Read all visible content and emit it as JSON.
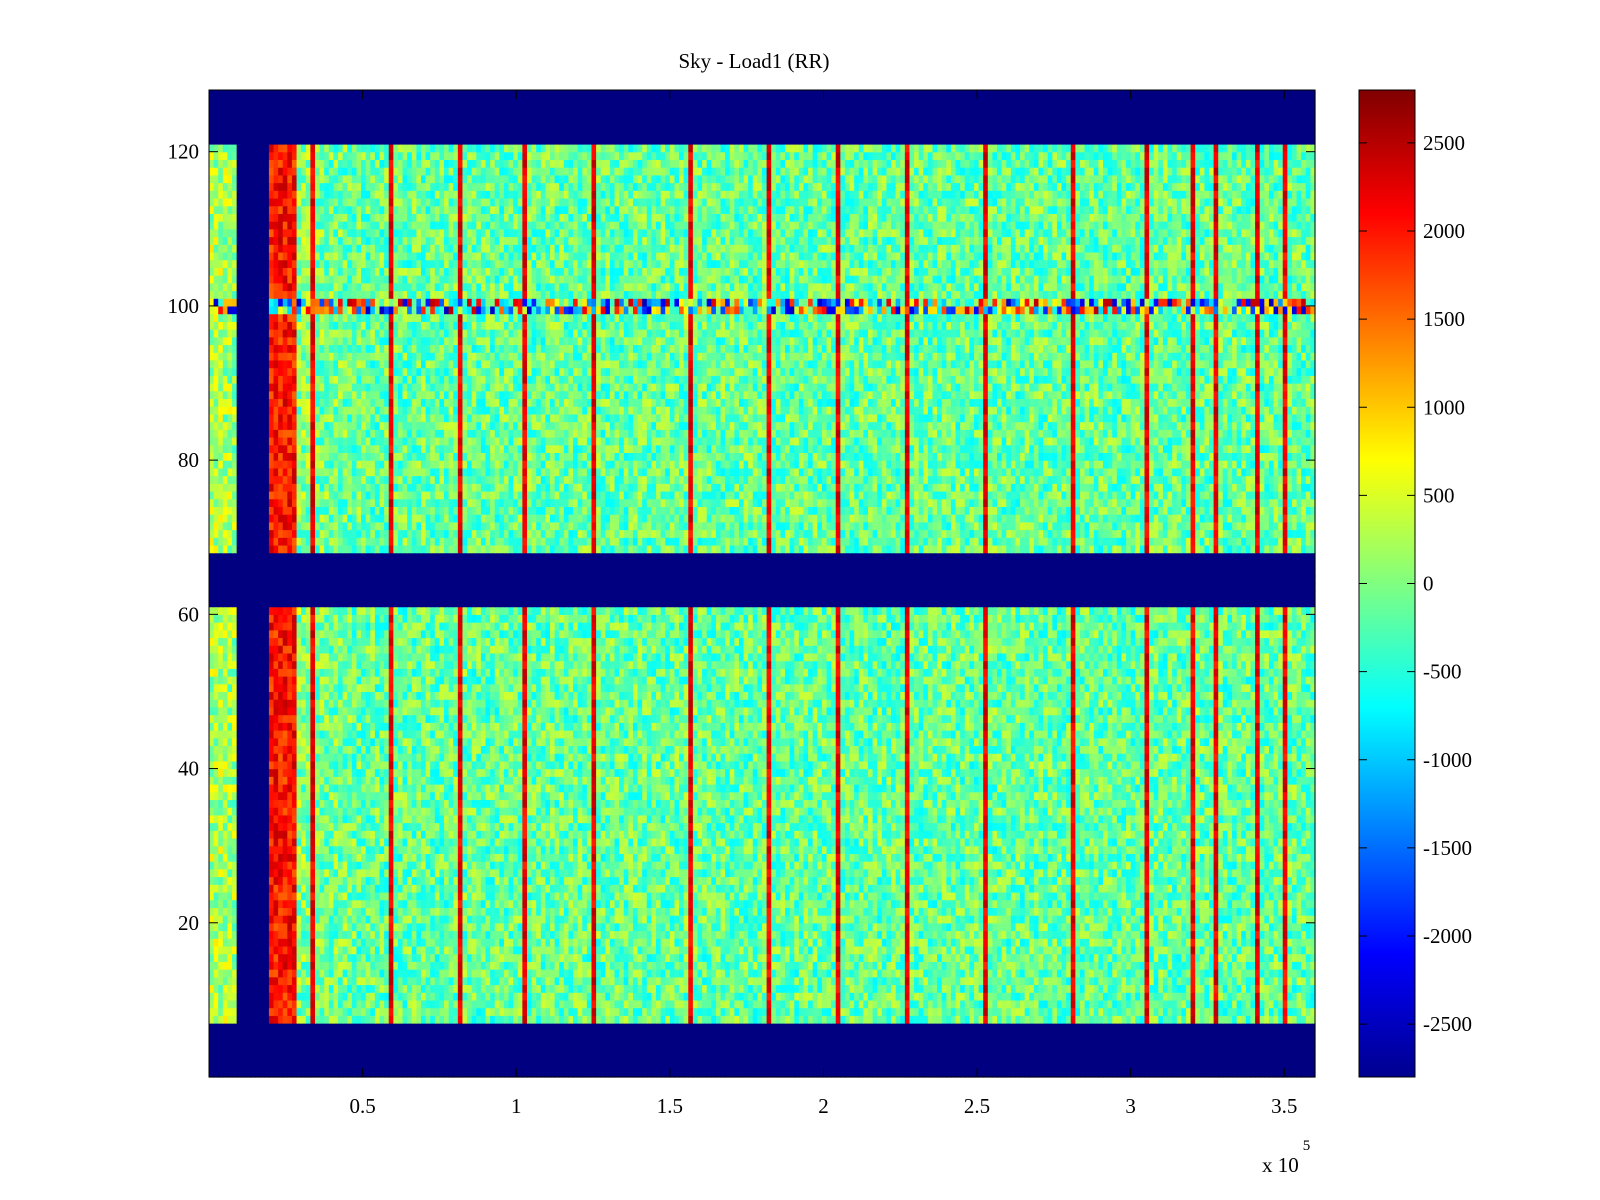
{
  "chart_data": {
    "type": "heatmap",
    "title": "Sky - Load1 (RR)",
    "xlabel": "",
    "ylabel": "",
    "x_multiplier_label": "x 10",
    "x_multiplier_exponent": "5",
    "xlim": [
      0,
      3.6
    ],
    "ylim": [
      0,
      128
    ],
    "x_ticks": [
      {
        "value": 0.5,
        "label": "0.5"
      },
      {
        "value": 1,
        "label": "1"
      },
      {
        "value": 1.5,
        "label": "1.5"
      },
      {
        "value": 2,
        "label": "2"
      },
      {
        "value": 2.5,
        "label": "2.5"
      },
      {
        "value": 3,
        "label": "3"
      },
      {
        "value": 3.5,
        "label": "3.5"
      }
    ],
    "y_ticks": [
      {
        "value": 20,
        "label": "20"
      },
      {
        "value": 40,
        "label": "40"
      },
      {
        "value": 60,
        "label": "60"
      },
      {
        "value": 80,
        "label": "80"
      },
      {
        "value": 100,
        "label": "100"
      },
      {
        "value": 120,
        "label": "120"
      }
    ],
    "colormap": "jet",
    "clim": [
      -2800,
      2800
    ],
    "colorbar_ticks": [
      {
        "value": 2500,
        "label": "2500"
      },
      {
        "value": 2000,
        "label": "2000"
      },
      {
        "value": 1500,
        "label": "1500"
      },
      {
        "value": 1000,
        "label": "1000"
      },
      {
        "value": 500,
        "label": "500"
      },
      {
        "value": 0,
        "label": "0"
      },
      {
        "value": -500,
        "label": "-500"
      },
      {
        "value": -1000,
        "label": "-1000"
      },
      {
        "value": -1500,
        "label": "-1500"
      },
      {
        "value": -2000,
        "label": "-2000"
      },
      {
        "value": -2500,
        "label": "-2500"
      }
    ],
    "masked_value": -2800,
    "masked_row_ranges": [
      [
        0,
        7
      ],
      [
        61,
        68
      ],
      [
        121,
        128
      ]
    ],
    "masked_column_range": [
      0.09,
      0.19
    ],
    "hot_column_range": [
      0.19,
      0.28
    ],
    "hot_column_value": 2000,
    "background_value": -150,
    "background_noise": 600,
    "spike_columns": [
      0.33,
      0.58,
      0.81,
      1.02,
      1.24,
      1.56,
      1.82,
      2.04,
      2.27,
      2.52,
      2.8,
      3.04,
      3.2,
      3.27,
      3.4,
      3.5
    ],
    "spike_value": 2200,
    "noisy_row_range": [
      99,
      101
    ],
    "noisy_row_amplitude": 2500
  }
}
